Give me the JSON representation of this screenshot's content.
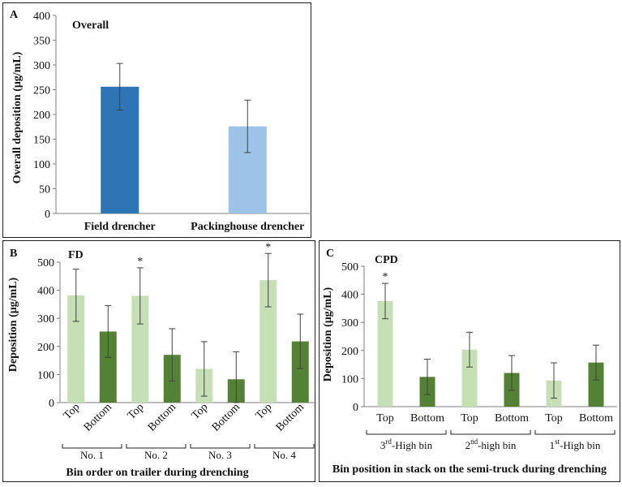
{
  "colors": {
    "field_drencher": "#2E75B6",
    "packinghouse_drencher": "#9DC3E6",
    "top": "#C5E0B4",
    "bottom": "#548235",
    "axis": "#7f7f7f",
    "error": "#404040"
  },
  "chart_data": [
    {
      "panel": "A",
      "type": "bar",
      "title": "Overall",
      "ylabel": "Overall deposition (μg/mL)",
      "xlabel": "",
      "ylim": [
        0,
        400
      ],
      "yticks": [
        "0",
        "50",
        "100",
        "150",
        "200",
        "250",
        "300",
        "350",
        "400"
      ],
      "categories": [
        "Field drencher",
        "Packinghouse drencher"
      ],
      "values": [
        256,
        176
      ],
      "errors": [
        47,
        53
      ],
      "bar_colors": [
        "field_drencher",
        "packinghouse_drencher"
      ],
      "grid": false
    },
    {
      "panel": "B",
      "type": "bar",
      "title": "FD",
      "ylabel": "Deposition (μg/mL)",
      "xlabel": "Bin order on trailer during drenching",
      "ylim": [
        0,
        500
      ],
      "yticks": [
        "0",
        "100",
        "200",
        "300",
        "400",
        "500"
      ],
      "categories": [
        "Top",
        "Bottom",
        "Top",
        "Bottom",
        "Top",
        "Bottom",
        "Top",
        "Bottom"
      ],
      "groups": [
        "No. 1",
        "No. 2",
        "No. 3",
        "No. 4"
      ],
      "values": [
        382,
        253,
        380,
        170,
        120,
        83,
        436,
        218
      ],
      "errors": [
        93,
        92,
        100,
        93,
        97,
        98,
        95,
        97
      ],
      "bar_colors": [
        "top",
        "bottom",
        "top",
        "bottom",
        "top",
        "bottom",
        "top",
        "bottom"
      ],
      "significance": [
        "",
        "",
        "*",
        "",
        "",
        "",
        "*",
        ""
      ],
      "grid": false
    },
    {
      "panel": "C",
      "type": "bar",
      "title": "CPD",
      "ylabel": "Deposition (μg/mL)",
      "xlabel": "Bin position in stack on the semi-truck during drenching",
      "ylim": [
        0,
        500
      ],
      "yticks": [
        "0",
        "100",
        "200",
        "300",
        "400",
        "500"
      ],
      "categories": [
        "Top",
        "Bottom",
        "Top",
        "Bottom",
        "Top",
        "Bottom"
      ],
      "groups": [
        {
          "base": "3",
          "sup": "rd",
          "rest": "-High bin"
        },
        {
          "base": "2",
          "sup": "nd",
          "rest": "-high  bin"
        },
        {
          "base": "1",
          "sup": "st",
          "rest": "-High bin"
        }
      ],
      "values": [
        376,
        106,
        203,
        120,
        93,
        157
      ],
      "errors": [
        63,
        63,
        62,
        62,
        63,
        62
      ],
      "bar_colors": [
        "top",
        "bottom",
        "top",
        "bottom",
        "top",
        "bottom"
      ],
      "significance": [
        "*",
        "",
        "",
        "",
        "",
        ""
      ],
      "grid": false
    }
  ]
}
